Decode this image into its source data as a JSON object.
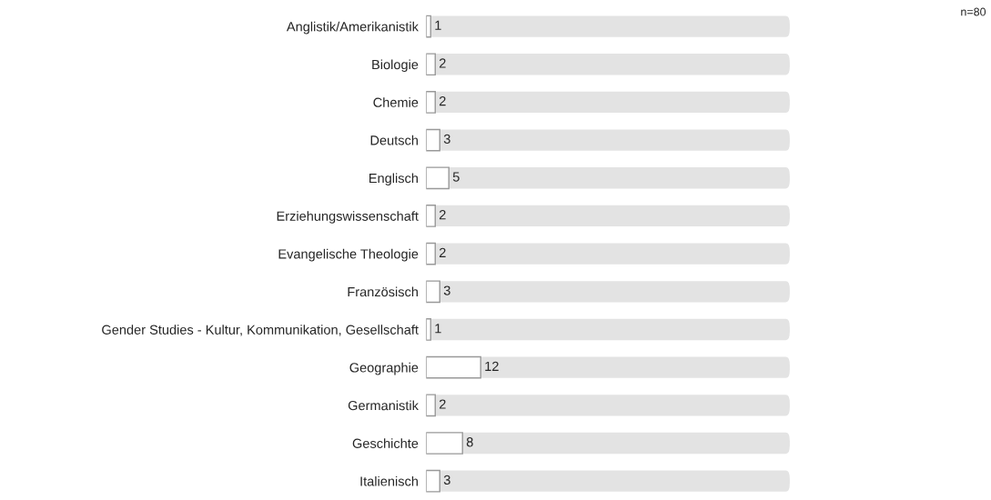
{
  "chart_data": {
    "type": "bar",
    "orientation": "horizontal",
    "categories": [
      "Anglistik/Amerikanistik",
      "Biologie",
      "Chemie",
      "Deutsch",
      "Englisch",
      "Erziehungswissenschaft",
      "Evangelische Theologie",
      "Französisch",
      "Gender Studies - Kultur, Kommunikation, Gesellschaft",
      "Geographie",
      "Germanistik",
      "Geschichte",
      "Italienisch"
    ],
    "values": [
      1,
      2,
      2,
      3,
      5,
      2,
      2,
      3,
      1,
      12,
      2,
      8,
      3
    ],
    "color": "#ffffff",
    "xlim": [
      0,
      80
    ],
    "data_labels": true,
    "tick_labels": "y",
    "grid": false,
    "legend": false,
    "annotations": [
      "n=80"
    ]
  }
}
